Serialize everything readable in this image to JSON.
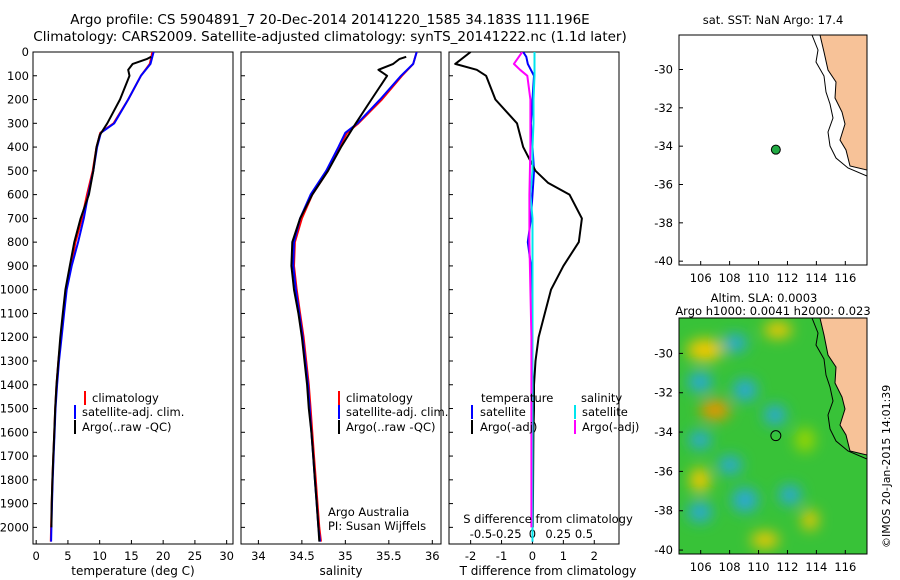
{
  "header": {
    "line1": "Argo profile: CS 5904891_7 20-Dec-2014 20141220_1585 34.183S 111.196E",
    "line2": "Climatology: CARS2009. Satellite-adjusted climatology: synTS_20141222.nc (1.1d later)"
  },
  "stamp": "©IMOS 20-Jan-2015 14:01:39",
  "colors": {
    "climatology": "#ff0000",
    "satellite": "#0000ff",
    "argo": "#000000",
    "sat_salinity": "#00e5ee",
    "argo_salinity_diff": "#ff00ff",
    "land": "#f7c298",
    "float_marker": "#22aa44"
  },
  "chart_data": [
    {
      "type": "line",
      "id": "temperature",
      "xlabel": "temperature (deg C)",
      "ylabel": "",
      "xlim": [
        -0.5,
        31
      ],
      "ylim": [
        2070,
        0
      ],
      "xticks": [
        0,
        5,
        10,
        15,
        20,
        25,
        30
      ],
      "yticks": [
        0,
        100,
        200,
        300,
        400,
        500,
        600,
        700,
        800,
        900,
        1000,
        1100,
        1200,
        1300,
        1400,
        1500,
        1600,
        1700,
        1800,
        1900,
        2000
      ],
      "legend": [
        "climatology",
        "satellite-adj. clim.",
        "Argo(..raw -QC)"
      ],
      "legend_position": "lower-right",
      "series": [
        {
          "name": "climatology",
          "color": "#ff0000",
          "x": [
            18.3,
            17.9,
            16.5,
            14.5,
            12.2,
            10.1,
            9.5,
            8.9,
            8.0,
            7.2,
            6.2,
            5.5,
            4.7,
            4.3,
            3.9,
            3.5,
            3.2,
            3.0,
            2.85,
            2.7,
            2.55,
            2.45,
            2.35,
            2.3
          ],
          "y": [
            0,
            50,
            100,
            200,
            300,
            340,
            400,
            500,
            600,
            700,
            800,
            900,
            1000,
            1100,
            1200,
            1300,
            1400,
            1500,
            1600,
            1700,
            1800,
            1900,
            2000,
            2060
          ]
        },
        {
          "name": "satellite-adj. clim.",
          "color": "#0000ff",
          "x": [
            18.5,
            18.0,
            16.5,
            14.5,
            12.3,
            10.2,
            9.6,
            9.0,
            8.2,
            7.5,
            6.6,
            5.6,
            4.8,
            4.4,
            4.0,
            3.6,
            3.3,
            3.05,
            2.9,
            2.75,
            2.6,
            2.5,
            2.4,
            2.35
          ],
          "y": [
            0,
            50,
            100,
            200,
            300,
            340,
            400,
            500,
            600,
            700,
            800,
            900,
            1000,
            1100,
            1200,
            1300,
            1400,
            1500,
            1600,
            1700,
            1800,
            1900,
            2000,
            2060
          ]
        },
        {
          "name": "Argo(..raw -QC)",
          "color": "#000000",
          "x": [
            18.1,
            17.4,
            15.2,
            14.5,
            14.7,
            13.2,
            11.2,
            10.0,
            9.5,
            9.0,
            8.3,
            7.0,
            6.0,
            5.3,
            4.6,
            4.2,
            3.8,
            3.5,
            3.2,
            3.0,
            2.85,
            2.7,
            2.55,
            2.45,
            2.4
          ],
          "y": [
            20,
            30,
            50,
            75,
            100,
            200,
            300,
            350,
            400,
            500,
            600,
            700,
            800,
            900,
            1000,
            1100,
            1200,
            1300,
            1400,
            1500,
            1600,
            1700,
            1800,
            1900,
            2000
          ]
        }
      ]
    },
    {
      "type": "line",
      "id": "salinity",
      "xlabel": "salinity",
      "xlim": [
        33.8,
        36.1
      ],
      "ylim": [
        2070,
        0
      ],
      "xticks": [
        34,
        34.5,
        35,
        35.5,
        36
      ],
      "xticklabels": [
        "34",
        "34.5",
        "35",
        "35.5",
        "36"
      ],
      "legend": [
        "climatology",
        "satellite-adj. clim.",
        "Argo(..raw -QC)"
      ],
      "legend_position": "lower-right",
      "annotation": [
        "Argo Australia",
        "PI: Susan Wijffels"
      ],
      "series": [
        {
          "name": "climatology",
          "color": "#ff0000",
          "x": [
            35.82,
            35.78,
            35.65,
            35.42,
            35.15,
            35.02,
            34.93,
            34.8,
            34.62,
            34.5,
            34.42,
            34.41,
            34.44,
            34.48,
            34.52,
            34.55,
            34.58,
            34.6,
            34.62,
            34.64,
            34.66,
            34.68,
            34.7,
            34.72
          ],
          "y": [
            0,
            50,
            100,
            200,
            300,
            340,
            400,
            500,
            600,
            700,
            800,
            900,
            1000,
            1100,
            1200,
            1300,
            1400,
            1500,
            1600,
            1700,
            1800,
            1900,
            2000,
            2060
          ]
        },
        {
          "name": "satellite-adj. clim.",
          "color": "#0000ff",
          "x": [
            35.82,
            35.78,
            35.64,
            35.4,
            35.14,
            35.0,
            34.92,
            34.78,
            34.6,
            34.48,
            34.41,
            34.4,
            34.43,
            34.47,
            34.51,
            34.54,
            34.57,
            34.59,
            34.61,
            34.63,
            34.65,
            34.67,
            34.69,
            34.71
          ],
          "y": [
            0,
            50,
            100,
            200,
            300,
            340,
            400,
            500,
            600,
            700,
            800,
            900,
            1000,
            1100,
            1200,
            1300,
            1400,
            1500,
            1600,
            1700,
            1800,
            1900,
            2000,
            2060
          ]
        },
        {
          "name": "Argo(..raw -QC)",
          "color": "#000000",
          "x": [
            35.7,
            35.62,
            35.55,
            35.38,
            35.48,
            35.3,
            35.12,
            34.95,
            34.8,
            34.62,
            34.48,
            34.39,
            34.38,
            34.41,
            34.46,
            34.5,
            34.53,
            34.56,
            34.58,
            34.61,
            34.63,
            34.65,
            34.67,
            34.69,
            34.7
          ],
          "y": [
            20,
            30,
            50,
            75,
            100,
            200,
            300,
            400,
            500,
            600,
            700,
            800,
            900,
            1000,
            1100,
            1200,
            1300,
            1400,
            1500,
            1600,
            1700,
            1800,
            1900,
            2000,
            2060
          ]
        }
      ]
    },
    {
      "type": "line",
      "id": "difference",
      "xlabel": "T difference from climatology",
      "xlabel_top": "S difference from climatology",
      "xlim": [
        -2.7,
        2.8
      ],
      "ylim": [
        2070,
        0
      ],
      "xticks": [
        -2,
        -1,
        0,
        1,
        2
      ],
      "xticks_top": [
        -0.5,
        -0.25,
        0,
        0.25,
        0.5
      ],
      "legend_titles": [
        "temperature",
        "salinity"
      ],
      "legend": [
        "satellite",
        "Argo(-adj)",
        "satellite",
        "Argo(-adj)"
      ],
      "series": [
        {
          "name": "satellite",
          "quantity": "temperature",
          "color": "#0000ff",
          "x": [
            -0.3,
            -0.2,
            -0.15,
            0.05,
            0,
            -0.05,
            0,
            0.05,
            0,
            -0.05,
            -0.1,
            -0.15,
            -0.1,
            -0.05,
            -0.05,
            0,
            0,
            0,
            0,
            0,
            0,
            0
          ],
          "y": [
            0,
            20,
            50,
            100,
            200,
            300,
            400,
            500,
            600,
            700,
            750,
            800,
            850,
            900,
            1000,
            1200,
            1400,
            1600,
            1800,
            1900,
            2000,
            2060
          ]
        },
        {
          "name": "Argo(-adj)",
          "quantity": "temperature",
          "color": "#000000",
          "x": [
            -2.0,
            -2.5,
            -1.8,
            -1.5,
            -1.2,
            -0.5,
            -0.3,
            0.1,
            0.5,
            1.2,
            1.6,
            1.5,
            1.0,
            0.6,
            0.4,
            0.2,
            0.1,
            0.05,
            0.05,
            0.03,
            0.02,
            0.01
          ],
          "y": [
            0,
            50,
            75,
            100,
            200,
            300,
            400,
            500,
            550,
            600,
            700,
            800,
            900,
            1000,
            1100,
            1200,
            1300,
            1400,
            1500,
            1600,
            1800,
            2000
          ]
        },
        {
          "name": "satellite",
          "quantity": "salinity",
          "color": "#00e5ee",
          "x": [
            0.02,
            0.02,
            0.01,
            0.01,
            0.0,
            0.0,
            -0.02,
            0.0,
            0.0,
            0.0,
            0.0,
            0.0,
            0.0,
            0.0,
            0.0
          ],
          "y": [
            0,
            100,
            200,
            300,
            400,
            500,
            600,
            700,
            800,
            900,
            1000,
            1200,
            1500,
            1800,
            2060
          ]
        },
        {
          "name": "Argo(-adj)",
          "quantity": "salinity",
          "color": "#ff00ff",
          "x": [
            -0.1,
            -0.18,
            -0.12,
            -0.05,
            -0.02,
            -0.02,
            -0.03,
            -0.03,
            -0.02,
            -0.01,
            -0.01,
            -0.01,
            -0.01,
            -0.01
          ],
          "y": [
            0,
            50,
            75,
            100,
            200,
            400,
            600,
            800,
            1000,
            1200,
            1400,
            1600,
            1800,
            2000
          ]
        }
      ]
    },
    {
      "type": "map",
      "id": "location",
      "title": "sat. SST: NaN Argo: 17.4",
      "xlim": [
        104.5,
        117.5
      ],
      "ylim": [
        -40.2,
        -28.2
      ],
      "xticks": [
        106,
        108,
        110,
        112,
        114,
        116
      ],
      "yticks": [
        -30,
        -32,
        -34,
        -36,
        -38,
        -40
      ],
      "float_lon": 111.196,
      "float_lat": -34.183
    },
    {
      "type": "heatmap",
      "id": "sla",
      "title_line1": "Altim. SLA: 0.0003",
      "title_line2": "Argo h1000: 0.0041 h2000: 0.023",
      "xlim": [
        104.5,
        117.5
      ],
      "ylim": [
        -40.2,
        -28.2
      ],
      "xticks": [
        106,
        108,
        110,
        112,
        114,
        116
      ],
      "yticks": [
        -30,
        -32,
        -34,
        -36,
        -38,
        -40
      ],
      "float_lon": 111.196,
      "float_lat": -34.183
    }
  ]
}
